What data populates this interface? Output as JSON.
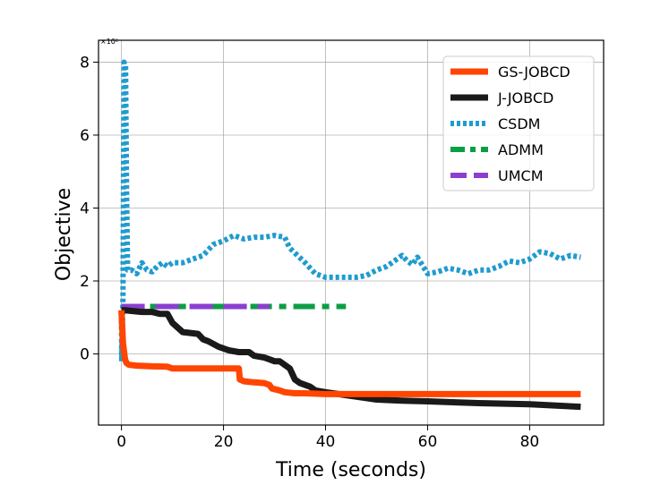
{
  "chart_data": {
    "type": "line",
    "xlabel": "Time (seconds)",
    "ylabel": "Objective",
    "y_multiplier": "×10²",
    "xlim": [
      -4.5,
      94.5
    ],
    "ylim": [
      -1.95,
      8.6
    ],
    "xticks": [
      0,
      20,
      40,
      60,
      80
    ],
    "yticks": [
      0,
      2,
      4,
      6,
      8
    ],
    "grid": true,
    "legend_position": "top-right",
    "series": [
      {
        "name": "GS-JOBCD",
        "color": "#ff4500",
        "dash": "solid",
        "width": 7,
        "x": [
          0,
          0.3,
          0.7,
          1,
          1.5,
          3,
          6,
          9,
          10,
          14,
          18,
          20,
          22,
          23,
          23.2,
          24,
          26,
          28,
          29,
          29.5,
          31,
          32,
          34,
          36,
          40,
          50,
          60,
          70,
          80,
          90
        ],
        "y": [
          1.2,
          0.3,
          -0.15,
          -0.25,
          -0.3,
          -0.32,
          -0.34,
          -0.35,
          -0.4,
          -0.4,
          -0.4,
          -0.4,
          -0.4,
          -0.4,
          -0.7,
          -0.75,
          -0.78,
          -0.8,
          -0.85,
          -0.95,
          -1.0,
          -1.05,
          -1.08,
          -1.08,
          -1.1,
          -1.1,
          -1.1,
          -1.1,
          -1.1,
          -1.1
        ]
      },
      {
        "name": "J-JOBCD",
        "color": "#1a1a1a",
        "dash": "solid",
        "width": 7,
        "x": [
          0,
          0.5,
          4,
          6,
          7.5,
          9,
          10,
          12,
          15,
          16,
          17,
          19,
          21,
          23,
          25,
          26,
          28,
          29,
          30,
          31,
          33,
          34,
          34.5,
          35,
          37,
          38,
          40,
          45,
          50,
          55,
          60,
          70,
          80,
          90
        ],
        "y": [
          1.2,
          1.2,
          1.15,
          1.15,
          1.1,
          1.1,
          0.85,
          0.6,
          0.55,
          0.4,
          0.35,
          0.2,
          0.1,
          0.05,
          0.05,
          -0.05,
          -0.1,
          -0.15,
          -0.2,
          -0.2,
          -0.4,
          -0.7,
          -0.75,
          -0.8,
          -0.9,
          -1.0,
          -1.05,
          -1.15,
          -1.25,
          -1.28,
          -1.3,
          -1.35,
          -1.38,
          -1.45
        ]
      },
      {
        "name": "CSDM",
        "color": "#1f9bcf",
        "dash": "dotted",
        "width": 6,
        "x": [
          0,
          0.05,
          0.3,
          0.5,
          0.8,
          1.0,
          1.2,
          2,
          3,
          4,
          5,
          6,
          7,
          8,
          9,
          10,
          12,
          14,
          16,
          18,
          20,
          22,
          24,
          26,
          28,
          30,
          32,
          33,
          36,
          38,
          40,
          42,
          44,
          46,
          48,
          50,
          52,
          54,
          55,
          56,
          57,
          58,
          60,
          62,
          64,
          66,
          68,
          70,
          72,
          74,
          76,
          78,
          80,
          82,
          84,
          86,
          88,
          90
        ],
        "y": [
          1.1,
          -0.2,
          1.5,
          8.0,
          7.9,
          4.5,
          2.3,
          2.3,
          2.2,
          2.5,
          2.3,
          2.25,
          2.4,
          2.5,
          2.4,
          2.5,
          2.5,
          2.6,
          2.7,
          3.0,
          3.1,
          3.25,
          3.15,
          3.2,
          3.2,
          3.25,
          3.2,
          2.9,
          2.5,
          2.2,
          2.1,
          2.1,
          2.1,
          2.1,
          2.15,
          2.3,
          2.4,
          2.6,
          2.7,
          2.55,
          2.45,
          2.65,
          2.2,
          2.25,
          2.35,
          2.3,
          2.2,
          2.3,
          2.3,
          2.4,
          2.55,
          2.5,
          2.6,
          2.8,
          2.75,
          2.6,
          2.7,
          2.65
        ]
      },
      {
        "name": "ADMM",
        "color": "#0c9e44",
        "dash": "dashdot",
        "width": 6,
        "x": [
          0,
          10,
          20,
          30,
          40,
          44
        ],
        "y": [
          1.3,
          1.3,
          1.3,
          1.3,
          1.3,
          1.3
        ]
      },
      {
        "name": "UMCM",
        "color": "#8a3fcf",
        "dash": "longdash",
        "width": 6,
        "x": [
          0,
          10,
          20,
          29
        ],
        "y": [
          1.3,
          1.3,
          1.3,
          1.3
        ]
      }
    ]
  }
}
